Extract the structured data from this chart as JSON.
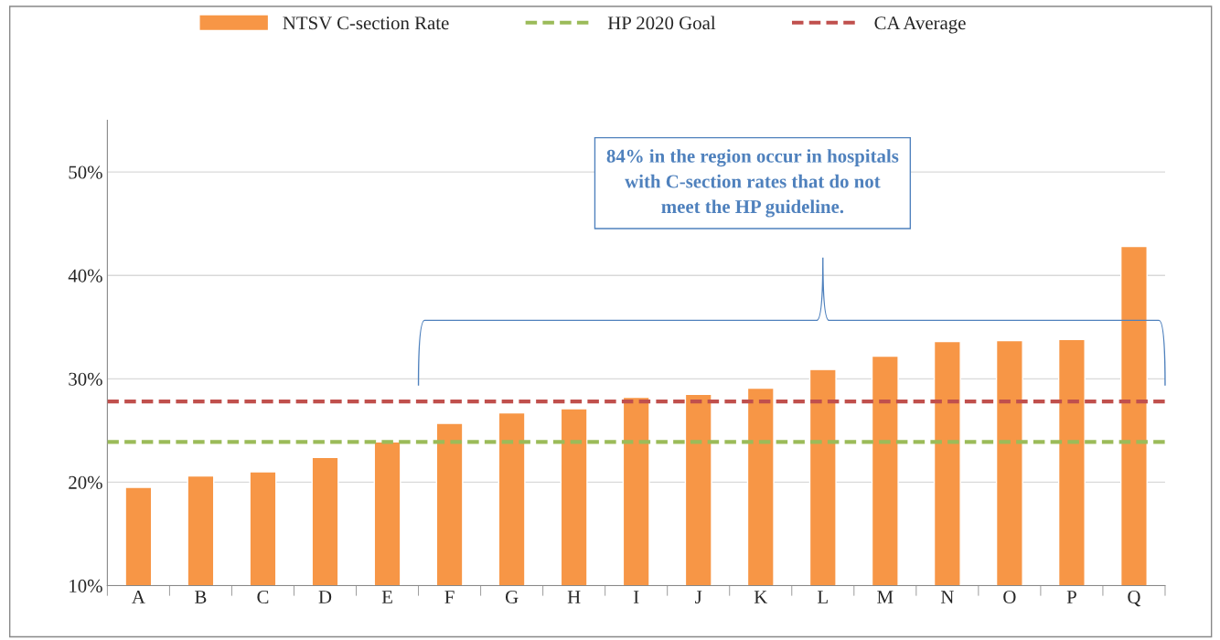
{
  "chart_data": {
    "type": "bar",
    "categories": [
      "A",
      "B",
      "C",
      "D",
      "E",
      "F",
      "G",
      "H",
      "I",
      "J",
      "K",
      "L",
      "M",
      "N",
      "O",
      "P",
      "Q"
    ],
    "series": [
      {
        "name": "NTSV C-section Rate",
        "color": "#f79646",
        "values": [
          19.5,
          20.6,
          21.0,
          22.4,
          23.9,
          25.7,
          26.7,
          27.1,
          28.2,
          28.5,
          29.1,
          30.9,
          32.2,
          33.6,
          33.7,
          33.8,
          42.8
        ]
      }
    ],
    "ref_lines": [
      {
        "axis": "y",
        "value": 23.9,
        "label": "HP 2020 Goal",
        "color": "#9bbb59",
        "line_style": "dashed"
      },
      {
        "axis": "y",
        "value": 27.8,
        "label": "CA Average",
        "color": "#c0504d",
        "line_style": "dashed"
      }
    ],
    "ylim": [
      10,
      55
    ],
    "yticks": [
      {
        "value": 10,
        "label": "10%"
      },
      {
        "value": 20,
        "label": "20%"
      },
      {
        "value": 30,
        "label": "30%"
      },
      {
        "value": 40,
        "label": "40%"
      },
      {
        "value": 50,
        "label": "50%"
      }
    ],
    "grid": "y",
    "legend": "top",
    "annotations": [
      "84% in the region occur in hospitals\nwith C-section rates that do not\nmeet the HP guideline."
    ]
  }
}
